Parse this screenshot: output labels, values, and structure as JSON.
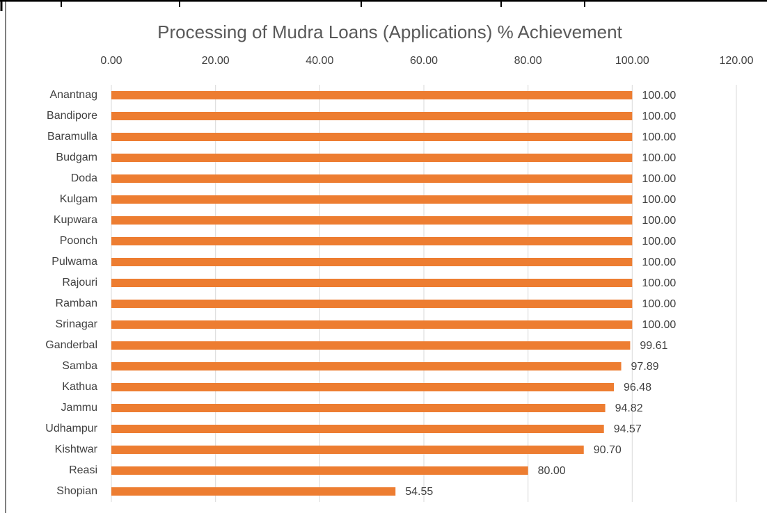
{
  "chart_data": {
    "type": "barh",
    "title": "Processing of Mudra Loans (Applications)  % Achievement",
    "categories": [
      "Anantnag",
      "Bandipore",
      "Baramulla",
      "Budgam",
      "Doda",
      "Kulgam",
      "Kupwara",
      "Poonch",
      "Pulwama",
      "Rajouri",
      "Ramban",
      "Srinagar",
      "Ganderbal",
      "Samba",
      "Kathua",
      "Jammu",
      "Udhampur",
      "Kishtwar",
      "Reasi",
      "Shopian"
    ],
    "values": [
      100,
      100,
      100,
      100,
      100,
      100,
      100,
      100,
      100,
      100,
      100,
      100,
      99.61,
      97.89,
      96.48,
      94.82,
      94.57,
      90.7,
      80,
      54.55
    ],
    "value_labels": [
      "100.00",
      "100.00",
      "100.00",
      "100.00",
      "100.00",
      "100.00",
      "100.00",
      "100.00",
      "100.00",
      "100.00",
      "100.00",
      "100.00",
      "99.61",
      "97.89",
      "96.48",
      "94.82",
      "94.57",
      "90.70",
      "80.00",
      "54.55"
    ],
    "color": "#ed7d31",
    "xlim": [
      0,
      120
    ],
    "xticks": [
      {
        "value": 0,
        "label": "0.00"
      },
      {
        "value": 20,
        "label": "20.00"
      },
      {
        "value": 40,
        "label": "40.00"
      },
      {
        "value": 60,
        "label": "60.00"
      },
      {
        "value": 80,
        "label": "80.00"
      },
      {
        "value": 100,
        "label": "100.00"
      },
      {
        "value": 120,
        "label": "120.00"
      }
    ],
    "grid": true
  }
}
